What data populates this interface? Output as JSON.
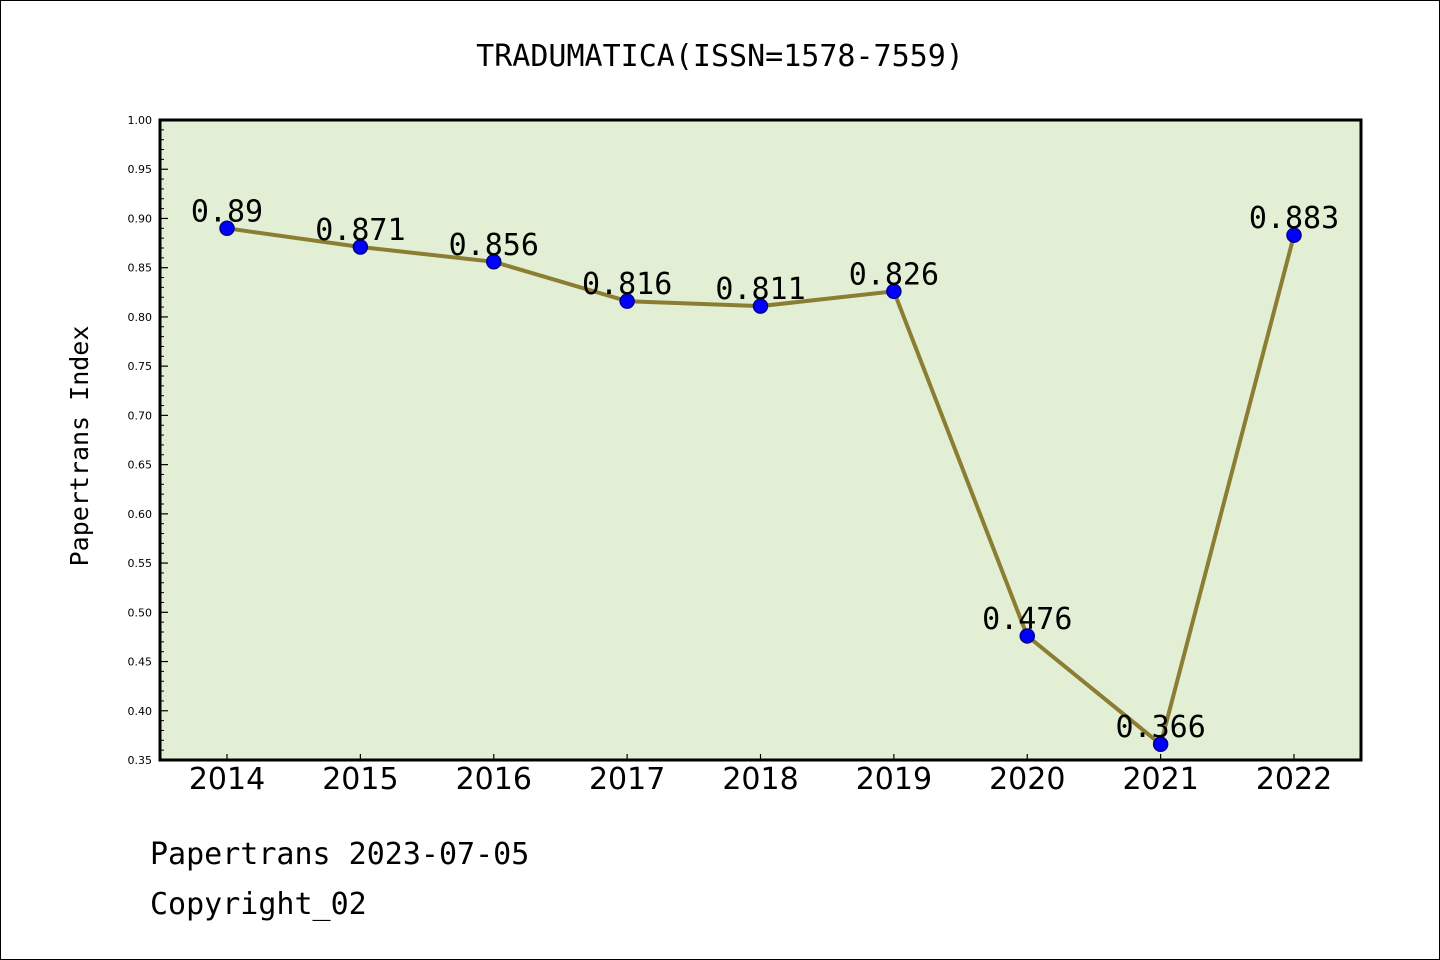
{
  "chart_data": {
    "type": "line",
    "title": "TRADUMATICA(ISSN=1578-7559)",
    "xlabel": "",
    "ylabel": "Papertrans Index",
    "categories": [
      "2014",
      "2015",
      "2016",
      "2017",
      "2018",
      "2019",
      "2020",
      "2021",
      "2022"
    ],
    "values": [
      0.89,
      0.871,
      0.856,
      0.816,
      0.811,
      0.826,
      0.476,
      0.366,
      0.883
    ],
    "data_labels": [
      "0.89",
      "0.871",
      "0.856",
      "0.816",
      "0.811",
      "0.826",
      "0.476",
      "0.366",
      "0.883"
    ],
    "ylim": [
      0.35,
      1.0
    ],
    "yticks": [
      "0.35",
      "0.40",
      "0.45",
      "0.50",
      "0.55",
      "0.60",
      "0.65",
      "0.70",
      "0.75",
      "0.80",
      "0.85",
      "0.90",
      "0.95",
      "1.00"
    ],
    "grid": false,
    "colors": {
      "plot_background": "#e2efd5",
      "line": "#8b7d32",
      "marker": "#0000ff"
    }
  },
  "footer": {
    "line1": "Papertrans 2023-07-05",
    "line2": "Copyright_02"
  }
}
